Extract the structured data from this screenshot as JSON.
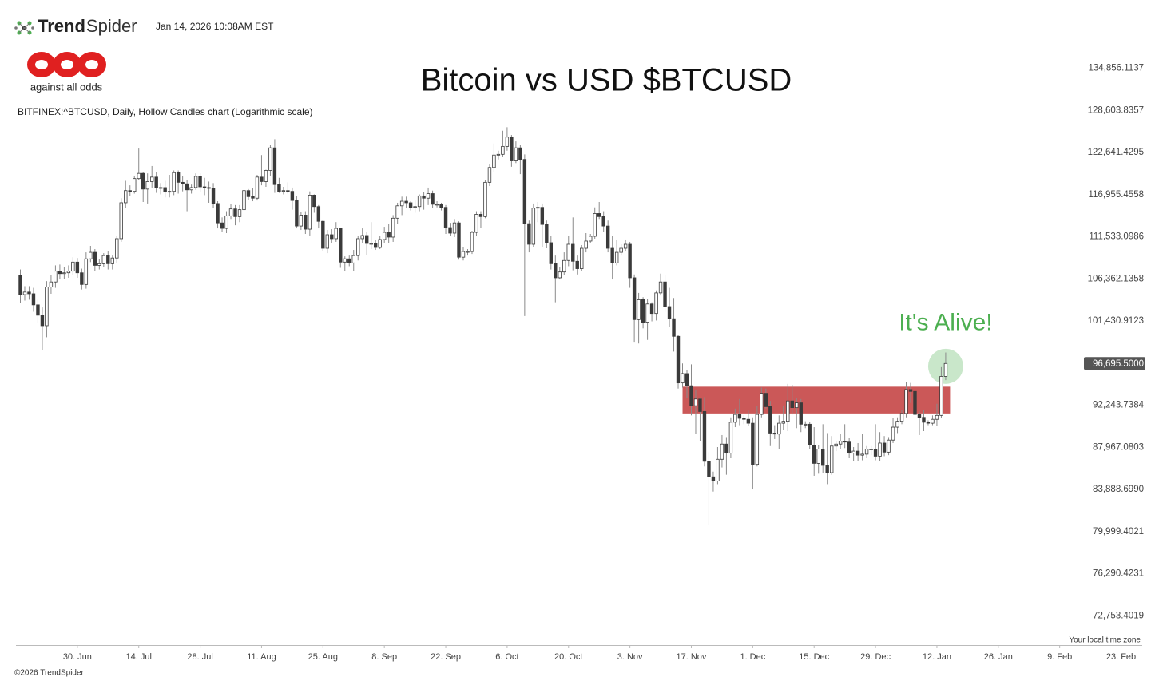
{
  "header": {
    "brand_bold": "Trend",
    "brand_light": "Spider",
    "timestamp": "Jan 14, 2026 10:08AM EST",
    "logo_text": "against all odds"
  },
  "footer": {
    "copyright": "©2026 TrendSpider",
    "timezone_note": "Your local time zone"
  },
  "chart_data": {
    "type": "candlestick",
    "title": "Bitcoin vs USD $BTCUSD",
    "subtitle": "BITFINEX:^BTCUSD, Daily, Hollow Candles chart (Logarithmic scale)",
    "annotation": "It's Alive!",
    "annotation_color": "#4caf50",
    "color": "#3a3a3a",
    "wick_color": "#8a8a8a",
    "log_scale": true,
    "xlim": [
      "16. Jun",
      "26. Feb"
    ],
    "ylim": [
      70400,
      138000
    ],
    "x": [
      "17. Jun",
      "18. Jun",
      "19. Jun",
      "20. Jun",
      "21. Jun",
      "22. Jun",
      "23. Jun",
      "24. Jun",
      "25. Jun",
      "26. Jun",
      "27. Jun",
      "28. Jun",
      "29. Jun",
      "30. Jun",
      "1. Jul",
      "2. Jul",
      "3. Jul",
      "4. Jul",
      "5. Jul",
      "6. Jul",
      "7. Jul",
      "8. Jul",
      "9. Jul",
      "10. Jul",
      "11. Jul",
      "12. Jul",
      "13. Jul",
      "14. Jul",
      "15. Jul",
      "16. Jul",
      "17. Jul",
      "18. Jul",
      "19. Jul",
      "20. Jul",
      "21. Jul",
      "22. Jul",
      "23. Jul",
      "24. Jul",
      "25. Jul",
      "26. Jul",
      "27. Jul",
      "28. Jul",
      "29. Jul",
      "30. Jul",
      "31. Jul",
      "1. Aug",
      "2. Aug",
      "3. Aug",
      "4. Aug",
      "5. Aug",
      "6. Aug",
      "7. Aug",
      "8. Aug",
      "9. Aug",
      "10. Aug",
      "11. Aug",
      "12. Aug",
      "13. Aug",
      "14. Aug",
      "15. Aug",
      "16. Aug",
      "17. Aug",
      "18. Aug",
      "19. Aug",
      "20. Aug",
      "21. Aug",
      "22. Aug",
      "23. Aug",
      "24. Aug",
      "25. Aug",
      "26. Aug",
      "27. Aug",
      "28. Aug",
      "29. Aug",
      "30. Aug",
      "31. Aug",
      "1. Sep",
      "2. Sep",
      "3. Sep",
      "4. Sep",
      "5. Sep",
      "6. Sep",
      "7. Sep",
      "8. Sep",
      "9. Sep",
      "10. Sep",
      "11. Sep",
      "12. Sep",
      "13. Sep",
      "14. Sep",
      "15. Sep",
      "16. Sep",
      "17. Sep",
      "18. Sep",
      "19. Sep",
      "20. Sep",
      "21. Sep",
      "22. Sep",
      "23. Sep",
      "24. Sep",
      "25. Sep",
      "26. Sep",
      "27. Sep",
      "28. Sep",
      "29. Sep",
      "30. Sep",
      "1. Oct",
      "2. Oct",
      "3. Oct",
      "4. Oct",
      "5. Oct",
      "6. Oct",
      "7. Oct",
      "8. Oct",
      "9. Oct",
      "10. Oct",
      "11. Oct",
      "12. Oct",
      "13. Oct",
      "14. Oct",
      "15. Oct",
      "16. Oct",
      "17. Oct",
      "18. Oct",
      "19. Oct",
      "20. Oct",
      "21. Oct",
      "22. Oct",
      "23. Oct",
      "24. Oct",
      "25. Oct",
      "26. Oct",
      "27. Oct",
      "28. Oct",
      "29. Oct",
      "30. Oct",
      "31. Oct",
      "1. Nov",
      "2. Nov",
      "3. Nov",
      "4. Nov",
      "5. Nov",
      "6. Nov",
      "7. Nov",
      "8. Nov",
      "9. Nov",
      "10. Nov",
      "11. Nov",
      "12. Nov",
      "13. Nov",
      "14. Nov",
      "15. Nov",
      "16. Nov",
      "17. Nov",
      "18. Nov",
      "19. Nov",
      "20. Nov",
      "21. Nov",
      "22. Nov",
      "23. Nov",
      "24. Nov",
      "25. Nov",
      "26. Nov",
      "27. Nov",
      "28. Nov",
      "29. Nov",
      "30. Nov",
      "1. Dec",
      "2. Dec",
      "3. Dec",
      "4. Dec",
      "5. Dec",
      "6. Dec",
      "7. Dec",
      "8. Dec",
      "9. Dec",
      "10. Dec",
      "11. Dec",
      "12. Dec",
      "13. Dec",
      "14. Dec",
      "15. Dec",
      "16. Dec",
      "17. Dec",
      "18. Dec",
      "19. Dec",
      "20. Dec",
      "21. Dec",
      "22. Dec",
      "23. Dec",
      "24. Dec",
      "25. Dec",
      "26. Dec",
      "27. Dec",
      "28. Dec",
      "29. Dec",
      "30. Dec",
      "31. Dec",
      "1. Jan",
      "2. Jan",
      "3. Jan",
      "4. Jan",
      "5. Jan",
      "6. Jan",
      "7. Jan",
      "8. Jan",
      "9. Jan",
      "10. Jan",
      "11. Jan",
      "12. Jan",
      "13. Jan",
      "14. Jan"
    ],
    "open": [
      106800,
      104500,
      104800,
      104600,
      103300,
      102100,
      100900,
      105400,
      106000,
      107300,
      107000,
      107100,
      107300,
      108400,
      107100,
      105700,
      108800,
      109600,
      108000,
      108200,
      109200,
      108200,
      108900,
      111300,
      115900,
      117500,
      117400,
      119100,
      119800,
      117700,
      118700,
      119300,
      117900,
      117900,
      117300,
      117400,
      119900,
      118600,
      118400,
      117600,
      117900,
      119400,
      118000,
      117900,
      117800,
      115800,
      113300,
      112600,
      114200,
      115100,
      114100,
      115000,
      117500,
      116700,
      116500,
      119300,
      118700,
      120200,
      123300,
      118300,
      117400,
      117500,
      117400,
      116200,
      112900,
      114300,
      112500,
      116900,
      115400,
      113500,
      110100,
      111800,
      111300,
      112600,
      108400,
      108800,
      108300,
      109200,
      111300,
      111700,
      110700,
      110700,
      110200,
      111200,
      112100,
      111500,
      113900,
      115500,
      116100,
      115900,
      115300,
      115400,
      116800,
      116500,
      117100,
      115700,
      115700,
      115300,
      112700,
      112000,
      113300,
      109000,
      109700,
      109700,
      112100,
      114400,
      114100,
      118600,
      120600,
      122300,
      122400,
      123500,
      124800,
      121500,
      123300,
      121700,
      113200,
      110600,
      115200,
      115300,
      113100,
      110800,
      108200,
      106500,
      107200,
      108600,
      110600,
      108500,
      107600,
      110100,
      111000,
      111600,
      114500,
      114100,
      112900,
      110100,
      108300,
      109600,
      110100,
      110600,
      106500,
      101600,
      103900,
      101300,
      103400,
      102300,
      104700,
      106000,
      103100,
      101700,
      99700,
      94600,
      95600,
      94300,
      92200,
      92900,
      91600,
      86600,
      85100,
      84700,
      86800,
      88300,
      87400,
      90500,
      91300,
      90900,
      90800,
      90400,
      86300,
      91300,
      93500,
      92100,
      89400,
      89300,
      90400,
      90600,
      92700,
      92000,
      92500,
      90300,
      90300,
      88200,
      86400,
      87800,
      86200,
      85500,
      88100,
      88300,
      88600,
      88500,
      87400,
      87600,
      87200,
      87300,
      87800,
      87800,
      87100,
      88400,
      87500,
      88700,
      90000,
      90600,
      91400,
      93900,
      93700,
      91300,
      91000,
      90500,
      90400,
      90800,
      91200,
      95300
    ],
    "high": [
      107500,
      105500,
      105500,
      105300,
      104000,
      103000,
      106100,
      106800,
      108000,
      108100,
      107800,
      108000,
      109000,
      108900,
      107600,
      109600,
      110400,
      110000,
      108800,
      109500,
      109700,
      109200,
      111600,
      116500,
      118800,
      118200,
      119500,
      123200,
      120000,
      119800,
      120800,
      120000,
      118500,
      118800,
      119600,
      120200,
      120200,
      119400,
      118900,
      118300,
      119800,
      119800,
      119200,
      118700,
      118500,
      116100,
      114000,
      114800,
      115700,
      115600,
      115600,
      118000,
      117700,
      117800,
      119600,
      122300,
      120300,
      123700,
      124500,
      119200,
      118000,
      118600,
      117900,
      116800,
      114700,
      114800,
      117400,
      117000,
      115600,
      113700,
      112400,
      112500,
      113400,
      112700,
      109100,
      109200,
      109900,
      111700,
      112600,
      112200,
      113400,
      111100,
      111600,
      112800,
      113200,
      114300,
      115900,
      116700,
      116700,
      116100,
      116200,
      117000,
      117300,
      117900,
      117500,
      116100,
      115900,
      115600,
      113300,
      113800,
      113500,
      110300,
      110000,
      112300,
      114800,
      114800,
      118900,
      121000,
      123900,
      122900,
      125700,
      126200,
      125100,
      124200,
      123700,
      122400,
      113600,
      115800,
      116000,
      115800,
      113600,
      111600,
      109200,
      107800,
      109600,
      111700,
      114000,
      109200,
      110500,
      112000,
      111900,
      115300,
      116000,
      114800,
      113600,
      111600,
      111100,
      110600,
      111200,
      110900,
      106900,
      104700,
      104200,
      104000,
      103600,
      105000,
      107000,
      106800,
      105300,
      104100,
      99900,
      96700,
      96000,
      96600,
      93800,
      93000,
      93100,
      87500,
      85600,
      88000,
      89200,
      89000,
      91000,
      91900,
      92900,
      91200,
      91700,
      91000,
      92200,
      94100,
      94000,
      92700,
      90200,
      91200,
      92200,
      94500,
      94400,
      93000,
      92900,
      90600,
      90500,
      90000,
      88200,
      90300,
      89400,
      89100,
      88600,
      89300,
      90300,
      88900,
      88000,
      88400,
      89300,
      88100,
      88100,
      90300,
      89500,
      89100,
      89000,
      90900,
      91000,
      91800,
      94700,
      94600,
      93900,
      91600,
      91800,
      90700,
      91200,
      92400,
      96300,
      97900
    ],
    "low": [
      103500,
      103800,
      103900,
      102500,
      101200,
      98200,
      99600,
      104600,
      105300,
      106300,
      106400,
      106500,
      106800,
      106500,
      105100,
      105200,
      108400,
      107300,
      107500,
      107800,
      107500,
      107500,
      108300,
      110900,
      115200,
      116800,
      117100,
      118900,
      116000,
      115800,
      117900,
      117200,
      117000,
      116600,
      116600,
      116900,
      117100,
      117400,
      114800,
      117100,
      117600,
      117300,
      116900,
      115900,
      115200,
      112600,
      112100,
      112000,
      113800,
      113000,
      113400,
      114300,
      116300,
      116100,
      116200,
      118200,
      118000,
      119500,
      117200,
      117200,
      117000,
      117100,
      115000,
      112600,
      112400,
      111900,
      111700,
      114600,
      112600,
      109800,
      109500,
      110800,
      110900,
      107700,
      107300,
      107900,
      107300,
      108600,
      110800,
      109300,
      110000,
      109900,
      110000,
      110800,
      110700,
      110900,
      113200,
      114300,
      115200,
      114900,
      114600,
      114800,
      115000,
      115600,
      115200,
      115300,
      114900,
      111900,
      111700,
      111500,
      108700,
      108600,
      109200,
      109400,
      111600,
      112700,
      113900,
      118100,
      120000,
      121700,
      122000,
      122900,
      120700,
      121200,
      119700,
      102000,
      109600,
      110200,
      113400,
      110200,
      110100,
      107500,
      103600,
      106300,
      106800,
      107900,
      107400,
      106900,
      107300,
      109600,
      110700,
      111300,
      113800,
      112200,
      109600,
      106300,
      108000,
      109200,
      109700,
      105300,
      99000,
      98900,
      100600,
      99300,
      101400,
      101500,
      104400,
      102500,
      100800,
      98000,
      94000,
      94100,
      93000,
      91200,
      89300,
      88600,
      86100,
      80600,
      83700,
      84400,
      86000,
      85300,
      86900,
      90000,
      90200,
      90300,
      90100,
      83900,
      86100,
      91000,
      91900,
      88100,
      88800,
      87800,
      89700,
      89600,
      91300,
      89900,
      89500,
      89900,
      87800,
      85200,
      85400,
      85500,
      84400,
      85300,
      87600,
      87800,
      87900,
      86900,
      86600,
      86600,
      86700,
      86900,
      87200,
      86700,
      86600,
      87100,
      87200,
      88400,
      89400,
      90300,
      91000,
      92500,
      90700,
      89200,
      89600,
      90200,
      90200,
      90100,
      90900,
      94900
    ],
    "close": [
      104500,
      104800,
      104600,
      103300,
      102100,
      100900,
      105400,
      106000,
      107300,
      107000,
      107100,
      107300,
      108400,
      107100,
      105700,
      108800,
      109600,
      108000,
      108200,
      109200,
      108200,
      108900,
      111300,
      115900,
      117500,
      117400,
      119100,
      119800,
      117700,
      118700,
      119300,
      117900,
      117900,
      117300,
      117400,
      119900,
      118600,
      118400,
      117600,
      117900,
      119400,
      118000,
      117900,
      117800,
      115800,
      113300,
      112600,
      114200,
      115100,
      114100,
      115000,
      117500,
      116700,
      116500,
      119300,
      118700,
      120200,
      123300,
      118300,
      117400,
      117500,
      117400,
      116200,
      112900,
      114300,
      112500,
      116900,
      115400,
      113500,
      110100,
      111800,
      111300,
      112600,
      108400,
      108800,
      108300,
      109200,
      111300,
      111700,
      110700,
      110700,
      110200,
      111200,
      112100,
      111500,
      113900,
      115500,
      116100,
      115900,
      115300,
      115400,
      116800,
      116500,
      117100,
      115700,
      115700,
      115300,
      112700,
      112000,
      113300,
      109000,
      109700,
      109700,
      112100,
      114400,
      114100,
      118600,
      120600,
      122300,
      122400,
      123500,
      124800,
      121500,
      123300,
      121700,
      113200,
      110600,
      115200,
      115300,
      113100,
      110800,
      108200,
      106500,
      107200,
      108600,
      110600,
      108500,
      107600,
      110100,
      111000,
      111600,
      114500,
      114100,
      112900,
      110100,
      108300,
      109600,
      110100,
      110600,
      106500,
      101600,
      103900,
      101300,
      103400,
      102300,
      104700,
      106000,
      103100,
      101700,
      99700,
      94600,
      95600,
      94300,
      92200,
      92900,
      91600,
      86600,
      85100,
      84700,
      86800,
      88300,
      87400,
      90500,
      91300,
      90900,
      90800,
      90400,
      86300,
      91300,
      93500,
      92100,
      89400,
      89300,
      90400,
      90600,
      92700,
      92000,
      92500,
      90300,
      90300,
      88200,
      86400,
      87800,
      86200,
      85500,
      88100,
      88300,
      88600,
      88500,
      87400,
      87600,
      87200,
      87300,
      87800,
      87800,
      87100,
      88400,
      87500,
      88700,
      90000,
      90600,
      91400,
      93900,
      93700,
      91300,
      91000,
      90500,
      90400,
      90800,
      91200,
      95300,
      96695.5
    ],
    "last_price": {
      "value": 96695.5,
      "label": "96,695.5000"
    },
    "zone": {
      "from": "15. Nov",
      "to": "15. Jan",
      "low": 91400,
      "high": 94200,
      "color": "#c23b3b"
    },
    "yticks": [
      {
        "value": 134856.1137,
        "label": "134,856.1137"
      },
      {
        "value": 128603.8357,
        "label": "128,603.8357"
      },
      {
        "value": 122641.4295,
        "label": "122,641.4295"
      },
      {
        "value": 116955.4558,
        "label": "116,955.4558"
      },
      {
        "value": 111533.0986,
        "label": "111,533.0986"
      },
      {
        "value": 106362.1358,
        "label": "106,362.1358"
      },
      {
        "value": 101430.9123,
        "label": "101,430.9123"
      },
      {
        "value": 92243.7384,
        "label": "92,243.7384"
      },
      {
        "value": 87967.0803,
        "label": "87,967.0803"
      },
      {
        "value": 83888.699,
        "label": "83,888.6990"
      },
      {
        "value": 79999.4021,
        "label": "79,999.4021"
      },
      {
        "value": 76290.4231,
        "label": "76,290.4231"
      },
      {
        "value": 72753.4019,
        "label": "72,753.4019"
      }
    ],
    "xticks": [
      "30. Jun",
      "14. Jul",
      "28. Jul",
      "11. Aug",
      "25. Aug",
      "8. Sep",
      "22. Sep",
      "6. Oct",
      "20. Oct",
      "3. Nov",
      "17. Nov",
      "1. Dec",
      "15. Dec",
      "29. Dec",
      "12. Jan",
      "26. Jan",
      "9. Feb",
      "23. Feb"
    ]
  }
}
